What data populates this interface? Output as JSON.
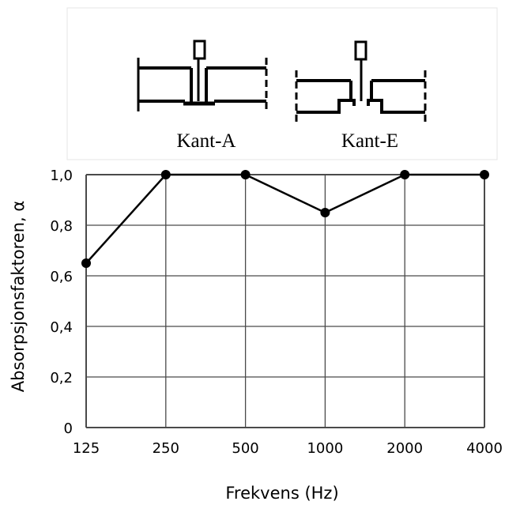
{
  "profiles": {
    "left_label": "Kant-A",
    "right_label": "Kant-E"
  },
  "chart_data": {
    "type": "line",
    "x": [
      "125",
      "250",
      "500",
      "1000",
      "2000",
      "4000"
    ],
    "series": [
      {
        "values": [
          0.65,
          1.0,
          1.0,
          0.85,
          1.0,
          1.0
        ]
      }
    ],
    "yticks": [
      "0",
      "0,2",
      "0,4",
      "0,6",
      "0,8",
      "1,0"
    ],
    "ylim": [
      0,
      1.0
    ],
    "xlabel": "Frekvens (Hz)",
    "ylabel": "Absorpsjonsfaktoren, α",
    "grid": true,
    "colors": {
      "line": "#000000",
      "grid": "#4a4a4a",
      "marker": "#000000"
    }
  }
}
